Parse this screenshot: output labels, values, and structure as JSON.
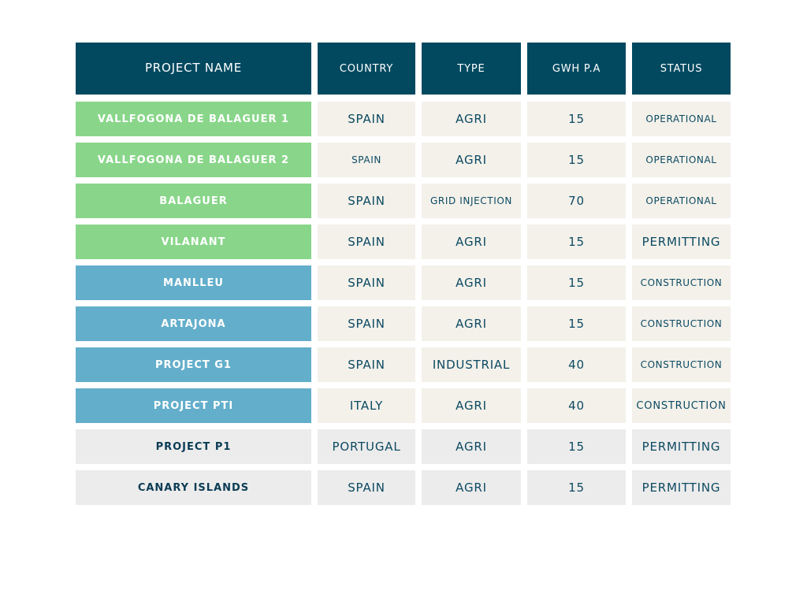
{
  "headers": {
    "project_name": "PROJECT NAME",
    "country": "COUNTRY",
    "type": "TYPE",
    "gwh": "GWH P.A",
    "status": "STATUS"
  },
  "rows": [
    {
      "name": "VALLFOGONA DE BALAGUER 1",
      "country": "SPAIN",
      "type": "AGRI",
      "gwh": "15",
      "status": "OPERATIONAL"
    },
    {
      "name": "VALLFOGONA DE BALAGUER 2",
      "country": "SPAIN",
      "type": "AGRI",
      "gwh": "15",
      "status": "OPERATIONAL"
    },
    {
      "name": "BALAGUER",
      "country": "SPAIN",
      "type": "GRID INJECTION",
      "gwh": "70",
      "status": "OPERATIONAL"
    },
    {
      "name": "VILANANT",
      "country": "SPAIN",
      "type": "AGRI",
      "gwh": "15",
      "status": "PERMITTING"
    },
    {
      "name": "MANLLEU",
      "country": "SPAIN",
      "type": "AGRI",
      "gwh": "15",
      "status": "CONSTRUCTION"
    },
    {
      "name": "ARTAJONA",
      "country": "SPAIN",
      "type": "AGRI",
      "gwh": "15",
      "status": "CONSTRUCTION"
    },
    {
      "name": "PROJECT G1",
      "country": "SPAIN",
      "type": "INDUSTRIAL",
      "gwh": "40",
      "status": "CONSTRUCTION"
    },
    {
      "name": "PROJECT PTI",
      "country": "ITALY",
      "type": "AGRI",
      "gwh": "40",
      "status": "CONSTRUCTION"
    },
    {
      "name": "PROJECT P1",
      "country": "PORTUGAL",
      "type": "AGRI",
      "gwh": "15",
      "status": "PERMITTING"
    },
    {
      "name": "CANARY ISLANDS",
      "country": "SPAIN",
      "type": "AGRI",
      "gwh": "15",
      "status": "PERMITTING"
    }
  ],
  "colors": {
    "header_bg": "#024960",
    "name_green": "#89d68a",
    "name_blue": "#63aecb",
    "cell_beige": "#f3f1ea",
    "cell_grey": "#ececec",
    "text_dark": "#0d4a62"
  }
}
